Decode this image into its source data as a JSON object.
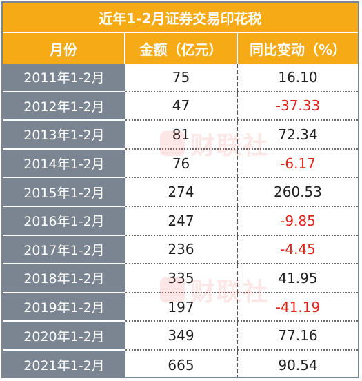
{
  "title": "近年1-2月证券交易印花税",
  "headers": {
    "month": "月份",
    "amount": "金额（亿元）",
    "yoy": "同比变动（%）"
  },
  "rows": [
    {
      "month": "2011年1-2月",
      "amount": "75",
      "yoy": "16.10",
      "negative": false
    },
    {
      "month": "2012年1-2月",
      "amount": "47",
      "yoy": "-37.33",
      "negative": true
    },
    {
      "month": "2013年1-2月",
      "amount": "81",
      "yoy": "72.34",
      "negative": false
    },
    {
      "month": "2014年1-2月",
      "amount": "76",
      "yoy": "-6.17",
      "negative": true
    },
    {
      "month": "2015年1-2月",
      "amount": "274",
      "yoy": "260.53",
      "negative": false
    },
    {
      "month": "2016年1-2月",
      "amount": "247",
      "yoy": "-9.85",
      "negative": true
    },
    {
      "month": "2017年1-2月",
      "amount": "236",
      "yoy": "-4.45",
      "negative": true
    },
    {
      "month": "2018年1-2月",
      "amount": "335",
      "yoy": "41.95",
      "negative": false
    },
    {
      "month": "2019年1-2月",
      "amount": "197",
      "yoy": "-41.19",
      "negative": true
    },
    {
      "month": "2020年1-2月",
      "amount": "349",
      "yoy": "77.16",
      "negative": false
    },
    {
      "month": "2021年1-2月",
      "amount": "665",
      "yoy": "90.54",
      "negative": false
    }
  ],
  "watermark_text": "财联社",
  "colors": {
    "header_bg": "#f6ab16",
    "month_col_bg": "#7b8591",
    "negative_text": "#e2231a"
  }
}
